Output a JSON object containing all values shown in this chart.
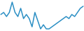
{
  "values": [
    3,
    4,
    2,
    4,
    9,
    4,
    2,
    6,
    1,
    3,
    1,
    -3,
    4,
    0,
    -4,
    -2,
    -4,
    -4,
    -3,
    -2,
    -1,
    0,
    1,
    2,
    1,
    3,
    2,
    4,
    6,
    7
  ],
  "line_color": "#2b8fc4",
  "linewidth": 1.1,
  "background_color": "#ffffff"
}
